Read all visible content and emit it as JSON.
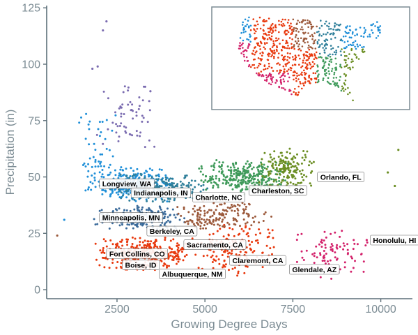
{
  "colors": {
    "axis": "#5c6f78",
    "tick_text": "#7b8b93",
    "label_box_fill": "#ffffff",
    "label_box_stroke": "#555555",
    "palette": [
      "#e8380d",
      "#d3226b",
      "#1e8fd8",
      "#2f7f9a",
      "#3f9a5a",
      "#6b8e23",
      "#7a6bb0",
      "#9c5a3c"
    ]
  },
  "chart_data": {
    "type": "scatter",
    "title": "",
    "xlabel": "Growing Degree Days",
    "ylabel": "Precipitation (in)",
    "xlim": [
      500,
      10900
    ],
    "ylim": [
      -4,
      126
    ],
    "x_ticks": [
      2500,
      5000,
      7500,
      10000
    ],
    "x_tick_labels": [
      "2500",
      "5000",
      "7500",
      "10000"
    ],
    "y_ticks": [
      0,
      25,
      50,
      75,
      100,
      125
    ],
    "y_tick_labels": [
      "0",
      "25",
      "50",
      "75",
      "100",
      "125"
    ],
    "grid": false,
    "legend": "none",
    "inset": "map of the contiguous United States colored by the same palette (top-right)",
    "clusters": [
      {
        "x_range": [
          1800,
          4800
        ],
        "y_range": [
          8,
          24
        ],
        "color": "#e8380d",
        "n": 320
      },
      {
        "x_range": [
          4500,
          7200
        ],
        "y_range": [
          6,
          30
        ],
        "color": "#e8380d",
        "n": 160
      },
      {
        "x_range": [
          1600,
          4200
        ],
        "y_range": [
          38,
          55
        ],
        "color": "#1e8fd8",
        "n": 260
      },
      {
        "x_range": [
          2200,
          5200
        ],
        "y_range": [
          38,
          52
        ],
        "color": "#2f7f9a",
        "n": 220
      },
      {
        "x_range": [
          1800,
          4500
        ],
        "y_range": [
          26,
          38
        ],
        "color": "#3a6a9a",
        "n": 200
      },
      {
        "x_range": [
          4800,
          7400
        ],
        "y_range": [
          42,
          58
        ],
        "color": "#3f9a5a",
        "n": 300
      },
      {
        "x_range": [
          6400,
          8200
        ],
        "y_range": [
          44,
          64
        ],
        "color": "#6b8e23",
        "n": 160
      },
      {
        "x_range": [
          4000,
          7000
        ],
        "y_range": [
          26,
          40
        ],
        "color": "#9c5a3c",
        "n": 160
      },
      {
        "x_range": [
          1900,
          3800
        ],
        "y_range": [
          58,
          95
        ],
        "color": "#7a6bb0",
        "n": 60
      },
      {
        "x_range": [
          7200,
          9800
        ],
        "y_range": [
          4,
          28
        ],
        "color": "#d3226b",
        "n": 90
      },
      {
        "x_range": [
          1400,
          2600
        ],
        "y_range": [
          40,
          80
        ],
        "color": "#1e8fd8",
        "n": 50
      }
    ],
    "outliers": [
      {
        "x": 2200,
        "y": 119,
        "color": "#7a6bb0"
      },
      {
        "x": 2100,
        "y": 115,
        "color": "#7a6bb0"
      },
      {
        "x": 1800,
        "y": 98,
        "color": "#7a6bb0"
      },
      {
        "x": 1950,
        "y": 99,
        "color": "#7a6bb0"
      },
      {
        "x": 3300,
        "y": 90,
        "color": "#7a6bb0"
      },
      {
        "x": 3450,
        "y": 88,
        "color": "#7a6bb0"
      },
      {
        "x": 1000,
        "y": 31,
        "color": "#1e8fd8"
      },
      {
        "x": 800,
        "y": 24,
        "color": "#9c5a3c"
      },
      {
        "x": 10500,
        "y": 62,
        "color": "#6b8e23"
      },
      {
        "x": 10400,
        "y": 46,
        "color": "#6b8e23"
      },
      {
        "x": 10200,
        "y": 52,
        "color": "#6b8e23"
      },
      {
        "x": 9600,
        "y": 22,
        "color": "#d3226b"
      }
    ]
  },
  "cities": [
    {
      "name": "Longview, WA",
      "x": 2000,
      "y": 47
    },
    {
      "name": "Indianapolis, IN",
      "x": 2900,
      "y": 43
    },
    {
      "name": "Charlotte, NC",
      "x": 4650,
      "y": 41
    },
    {
      "name": "Charleston, SC",
      "x": 6250,
      "y": 44
    },
    {
      "name": "Orlando, FL",
      "x": 8200,
      "y": 50
    },
    {
      "name": "Minneapolis, MN",
      "x": 2000,
      "y": 32
    },
    {
      "name": "Berkeley, CA",
      "x": 3350,
      "y": 26
    },
    {
      "name": "Sacramento, CA",
      "x": 4400,
      "y": 20
    },
    {
      "name": "Fort Collins, CO",
      "x": 2200,
      "y": 16
    },
    {
      "name": "Boise, ID",
      "x": 2650,
      "y": 11
    },
    {
      "name": "Claremont, CA",
      "x": 5700,
      "y": 13
    },
    {
      "name": "Albuquerque, NM",
      "x": 3700,
      "y": 7
    },
    {
      "name": "Glendale, AZ",
      "x": 7400,
      "y": 9
    },
    {
      "name": "Honolulu, HI",
      "x": 9700,
      "y": 22
    }
  ]
}
